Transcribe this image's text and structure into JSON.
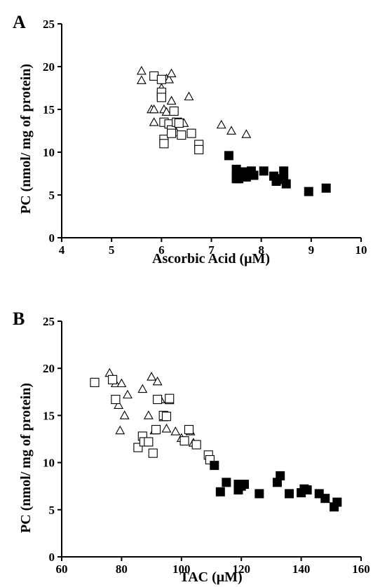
{
  "chart_data": [
    {
      "type": "scatter",
      "panel_label": "A",
      "xlabel": "Ascorbic Acid (μM)",
      "ylabel": "PC (nmol/ mg of protein)",
      "xlim": [
        4,
        10
      ],
      "ylim": [
        0,
        25
      ],
      "xticks": [
        "4",
        "5",
        "6",
        "7",
        "8",
        "9",
        "10"
      ],
      "yticks": [
        "0",
        "5",
        "10",
        "15",
        "20",
        "25"
      ],
      "grid": false,
      "legend": "none",
      "series": [
        {
          "marker": "open-triangle",
          "points": [
            [
              5.6,
              19.5
            ],
            [
              5.6,
              18.4
            ],
            [
              5.8,
              15.0
            ],
            [
              5.85,
              15.0
            ],
            [
              5.85,
              13.5
            ],
            [
              6.0,
              17.5
            ],
            [
              6.05,
              15.0
            ],
            [
              6.1,
              14.7
            ],
            [
              6.1,
              18.6
            ],
            [
              6.15,
              18.5
            ],
            [
              6.2,
              16.0
            ],
            [
              6.2,
              19.2
            ],
            [
              6.25,
              13.5
            ],
            [
              6.3,
              12.3
            ],
            [
              6.4,
              13.5
            ],
            [
              6.45,
              13.4
            ],
            [
              6.55,
              16.5
            ],
            [
              7.2,
              13.2
            ],
            [
              7.4,
              12.5
            ],
            [
              7.7,
              12.1
            ]
          ]
        },
        {
          "marker": "open-square",
          "points": [
            [
              5.85,
              18.9
            ],
            [
              6.0,
              18.5
            ],
            [
              6.0,
              16.6
            ],
            [
              6.0,
              17.0
            ],
            [
              6.0,
              16.4
            ],
            [
              6.05,
              13.5
            ],
            [
              6.05,
              11.5
            ],
            [
              6.05,
              11.0
            ],
            [
              6.15,
              13.3
            ],
            [
              6.2,
              12.6
            ],
            [
              6.2,
              12.2
            ],
            [
              6.25,
              14.8
            ],
            [
              6.3,
              13.5
            ],
            [
              6.35,
              13.4
            ],
            [
              6.4,
              12.0
            ],
            [
              6.6,
              12.2
            ],
            [
              6.75,
              10.9
            ],
            [
              6.75,
              10.3
            ]
          ]
        },
        {
          "marker": "filled-square",
          "points": [
            [
              7.35,
              9.6
            ],
            [
              7.5,
              8.0
            ],
            [
              7.5,
              7.2
            ],
            [
              7.5,
              6.9
            ],
            [
              7.55,
              6.9
            ],
            [
              7.6,
              7.3
            ],
            [
              7.65,
              7.7
            ],
            [
              7.7,
              7.1
            ],
            [
              7.75,
              7.3
            ],
            [
              7.8,
              7.8
            ],
            [
              7.85,
              7.3
            ],
            [
              8.05,
              7.8
            ],
            [
              8.25,
              7.2
            ],
            [
              8.3,
              6.9
            ],
            [
              8.3,
              6.6
            ],
            [
              8.45,
              7.8
            ],
            [
              8.45,
              6.8
            ],
            [
              8.5,
              6.3
            ],
            [
              8.95,
              5.4
            ],
            [
              9.3,
              5.8
            ]
          ]
        }
      ]
    },
    {
      "type": "scatter",
      "panel_label": "B",
      "xlabel": "TAC (μM)",
      "ylabel": "PC (nmol/ mg of protein)",
      "xlim": [
        60,
        160
      ],
      "ylim": [
        0,
        25
      ],
      "xticks": [
        "60",
        "80",
        "100",
        "120",
        "140",
        "160"
      ],
      "yticks": [
        "0",
        "5",
        "10",
        "15",
        "20",
        "25"
      ],
      "grid": false,
      "legend": "none",
      "series": [
        {
          "marker": "open-triangle",
          "points": [
            [
              76,
              19.5
            ],
            [
              77,
              18.8
            ],
            [
              78,
              18.4
            ],
            [
              79,
              16.1
            ],
            [
              79.5,
              13.4
            ],
            [
              80,
              18.4
            ],
            [
              81,
              15.0
            ],
            [
              82,
              17.2
            ],
            [
              87,
              17.8
            ],
            [
              89,
              15.0
            ],
            [
              90,
              19.1
            ],
            [
              91,
              13.4
            ],
            [
              92,
              18.6
            ],
            [
              93,
              16.7
            ],
            [
              94,
              14.8
            ],
            [
              95,
              13.6
            ],
            [
              96,
              16.6
            ],
            [
              98,
              13.3
            ],
            [
              100,
              12.6
            ],
            [
              103,
              13.3
            ],
            [
              104,
              12.1
            ]
          ]
        },
        {
          "marker": "open-square",
          "points": [
            [
              71,
              18.5
            ],
            [
              77,
              18.8
            ],
            [
              78,
              16.7
            ],
            [
              85.5,
              11.6
            ],
            [
              87,
              12.8
            ],
            [
              87.5,
              12.2
            ],
            [
              89,
              12.2
            ],
            [
              90.5,
              11.0
            ],
            [
              91.5,
              13.5
            ],
            [
              92,
              16.7
            ],
            [
              94,
              15.0
            ],
            [
              95,
              14.9
            ],
            [
              96,
              16.8
            ],
            [
              101,
              12.3
            ],
            [
              102.5,
              13.5
            ],
            [
              105,
              11.9
            ],
            [
              109,
              10.8
            ],
            [
              109.5,
              10.3
            ]
          ]
        },
        {
          "marker": "filled-square",
          "points": [
            [
              111,
              9.7
            ],
            [
              113,
              6.9
            ],
            [
              115,
              7.9
            ],
            [
              119,
              7.7
            ],
            [
              119,
              7.1
            ],
            [
              120,
              7.5
            ],
            [
              121,
              7.7
            ],
            [
              126,
              6.7
            ],
            [
              132,
              7.9
            ],
            [
              133,
              8.6
            ],
            [
              136,
              6.7
            ],
            [
              140,
              6.8
            ],
            [
              141,
              7.2
            ],
            [
              142,
              7.1
            ],
            [
              146,
              6.7
            ],
            [
              148,
              6.2
            ],
            [
              151,
              5.3
            ],
            [
              152,
              5.8
            ]
          ]
        }
      ]
    }
  ]
}
